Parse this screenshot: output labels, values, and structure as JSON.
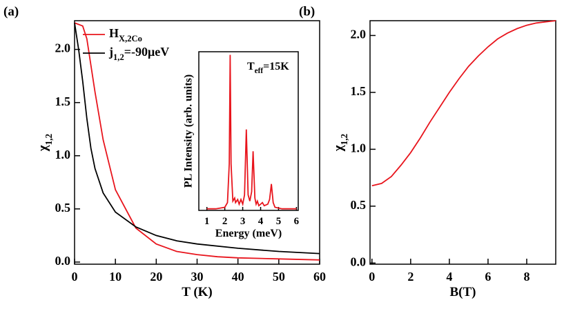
{
  "chart_data": [
    {
      "type": "line",
      "label": "(a)",
      "xlabel": "T (K)",
      "ylabel": [
        {
          "t": "χ"
        },
        {
          "t": "1,2",
          "sub": true
        }
      ],
      "xlim": [
        0,
        60
      ],
      "ylim": [
        -0.02,
        2.27
      ],
      "xticks": [
        0,
        10,
        20,
        30,
        40,
        50,
        60
      ],
      "yticks": [
        {
          "value": 0,
          "label": "0.0"
        },
        0.5,
        {
          "value": 1,
          "label": "1.0"
        },
        1.5,
        {
          "value": 2,
          "label": "2.0"
        }
      ],
      "legend": "upper center",
      "series": [
        {
          "name": [
            {
              "t": "H"
            },
            {
              "t": "X,2Co",
              "sub": true
            }
          ],
          "color": "#e8141c",
          "x": [
            0,
            2,
            3,
            5,
            7,
            10,
            15,
            20,
            25,
            30,
            35,
            40,
            50,
            60
          ],
          "values": [
            2.25,
            2.22,
            2.1,
            1.6,
            1.15,
            0.68,
            0.32,
            0.17,
            0.1,
            0.07,
            0.05,
            0.04,
            0.03,
            0.02
          ]
        },
        {
          "name": [
            {
              "t": "j"
            },
            {
              "t": "1,2",
              "sub": true
            },
            {
              "t": "=-90μeV"
            }
          ],
          "color": "#000000",
          "x": [
            0,
            1,
            2,
            3,
            4,
            5,
            7,
            10,
            15,
            20,
            25,
            30,
            40,
            50,
            60
          ],
          "values": [
            2.25,
            2.0,
            1.7,
            1.35,
            1.07,
            0.88,
            0.65,
            0.47,
            0.33,
            0.25,
            0.2,
            0.17,
            0.13,
            0.1,
            0.08
          ]
        }
      ]
    },
    {
      "type": "line",
      "xlabel": "Energy (meV)",
      "ylabel": "PL Intensity (arb. units)",
      "annotation": [
        {
          "t": "T"
        },
        {
          "t": "eff",
          "sub": true
        },
        {
          "t": "=15K"
        }
      ],
      "xlim": [
        0.55,
        6.1
      ],
      "ylim": [
        0,
        1.02
      ],
      "xticks": [
        1,
        2,
        3,
        4,
        5,
        6
      ],
      "series": [
        {
          "color": "#e8141c",
          "x": [
            1.0,
            1.5,
            2.0,
            2.15,
            2.25,
            2.3,
            2.35,
            2.45,
            2.55,
            2.6,
            2.72,
            2.8,
            2.9,
            3.0,
            3.1,
            3.2,
            3.3,
            3.4,
            3.5,
            3.58,
            3.68,
            3.75,
            3.82,
            3.9,
            4.0,
            4.1,
            4.2,
            4.4,
            4.5,
            4.6,
            4.7,
            4.8,
            5.2,
            6.0
          ],
          "values": [
            0.01,
            0.01,
            0.02,
            0.05,
            0.3,
            1.0,
            0.3,
            0.06,
            0.08,
            0.05,
            0.07,
            0.04,
            0.07,
            0.04,
            0.1,
            0.52,
            0.1,
            0.06,
            0.12,
            0.38,
            0.08,
            0.04,
            0.06,
            0.03,
            0.04,
            0.05,
            0.03,
            0.04,
            0.07,
            0.17,
            0.05,
            0.02,
            0.01,
            0.01
          ]
        }
      ]
    },
    {
      "type": "line",
      "label": "(b)",
      "xlabel": "B(T)",
      "ylabel": [
        {
          "t": "χ"
        },
        {
          "t": "1,2",
          "sub": true
        }
      ],
      "xlim": [
        -0.1,
        9.5
      ],
      "ylim": [
        -0.01,
        2.13
      ],
      "xticks": [
        0,
        2,
        4,
        6,
        8
      ],
      "yticks": [
        {
          "value": 0,
          "label": "0.0"
        },
        0.5,
        {
          "value": 1,
          "label": "1.0"
        },
        1.5,
        {
          "value": 2,
          "label": "2.0"
        }
      ],
      "series": [
        {
          "color": "#e8141c",
          "x": [
            0,
            0.5,
            1,
            1.5,
            2,
            2.5,
            3,
            3.5,
            4,
            4.5,
            5,
            5.5,
            6,
            6.5,
            7,
            7.5,
            8,
            8.5,
            9,
            9.5
          ],
          "values": [
            0.68,
            0.7,
            0.76,
            0.86,
            0.97,
            1.1,
            1.24,
            1.37,
            1.5,
            1.62,
            1.73,
            1.82,
            1.9,
            1.97,
            2.02,
            2.06,
            2.09,
            2.11,
            2.12,
            2.13
          ]
        }
      ]
    }
  ]
}
